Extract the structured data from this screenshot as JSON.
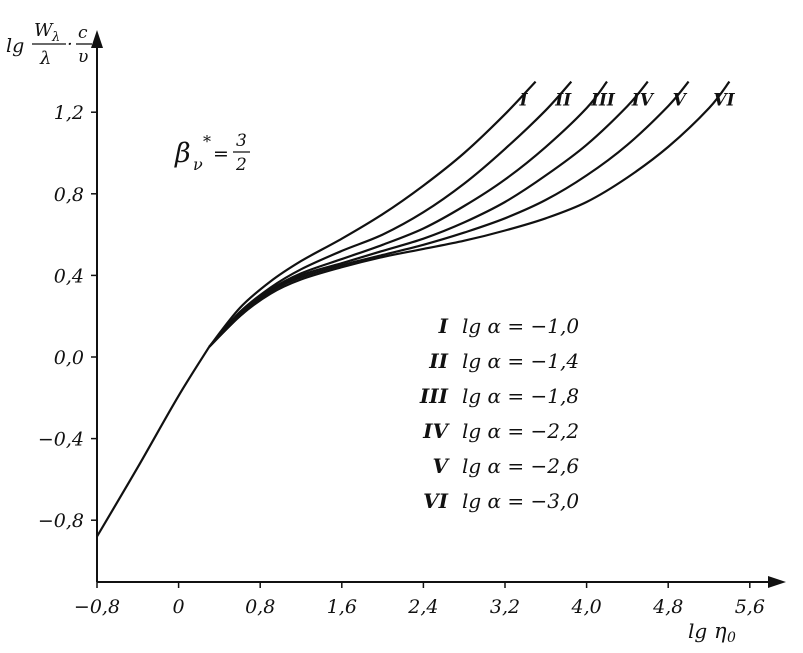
{
  "chart_data": {
    "type": "line",
    "ylabel": {
      "prefix": "lg",
      "num1": "W",
      "num1_sub": "λ",
      "den1": "λ",
      "dot": "·",
      "num2": "c",
      "den2": "υ"
    },
    "xlabel": {
      "prefix": "lg",
      "main": "η",
      "sub": "0"
    },
    "annotation": {
      "symbol": "β",
      "sub": "ν",
      "sup": "*",
      "eq": "=",
      "num": "3",
      "den": "2"
    },
    "xlim": [
      -0.8,
      5.8
    ],
    "ylim": [
      -1.1,
      1.5
    ],
    "x_ticks": [
      -0.8,
      0,
      0.8,
      1.6,
      2.4,
      3.2,
      4.0,
      4.8,
      5.6
    ],
    "x_tick_labels": [
      "−0,8",
      "0",
      "0,8",
      "1,6",
      "2,4",
      "3,2",
      "4,0",
      "4,8",
      "5,6"
    ],
    "y_ticks": [
      -0.8,
      -0.4,
      0.0,
      0.4,
      0.8,
      1.2
    ],
    "y_tick_labels": [
      "−0,8",
      "−0,4",
      "0,0",
      "0,4",
      "0,8",
      "1,2"
    ],
    "common_branch": {
      "x": [
        -0.8,
        -0.4,
        0.0,
        0.3
      ],
      "y": [
        -0.88,
        -0.54,
        -0.19,
        0.05
      ]
    },
    "series": [
      {
        "name": "I",
        "legend_text": "lg α = −1,0",
        "x": [
          0.3,
          0.6,
          0.9,
          1.2,
          1.6,
          2.0,
          2.4,
          2.8,
          3.2,
          3.5
        ],
        "y": [
          0.05,
          0.24,
          0.37,
          0.47,
          0.58,
          0.7,
          0.84,
          1.0,
          1.19,
          1.35
        ]
      },
      {
        "name": "II",
        "legend_text": "lg α = −1,4",
        "x": [
          0.3,
          0.6,
          0.9,
          1.2,
          1.6,
          2.0,
          2.4,
          2.8,
          3.2,
          3.6,
          3.85
        ],
        "y": [
          0.05,
          0.22,
          0.34,
          0.43,
          0.52,
          0.6,
          0.71,
          0.85,
          1.02,
          1.21,
          1.35
        ]
      },
      {
        "name": "III",
        "legend_text": "lg α = −1,8",
        "x": [
          0.3,
          0.6,
          0.9,
          1.2,
          1.6,
          2.0,
          2.4,
          2.8,
          3.2,
          3.6,
          4.0,
          4.2
        ],
        "y": [
          0.05,
          0.21,
          0.33,
          0.41,
          0.48,
          0.55,
          0.63,
          0.74,
          0.87,
          1.03,
          1.22,
          1.35
        ]
      },
      {
        "name": "IV",
        "legend_text": "lg α = −2,2",
        "x": [
          0.3,
          0.6,
          0.9,
          1.2,
          1.6,
          2.0,
          2.4,
          2.8,
          3.2,
          3.6,
          4.0,
          4.4,
          4.6
        ],
        "y": [
          0.05,
          0.2,
          0.32,
          0.4,
          0.46,
          0.52,
          0.58,
          0.66,
          0.76,
          0.89,
          1.04,
          1.23,
          1.35
        ]
      },
      {
        "name": "V",
        "legend_text": "lg α = −2,6",
        "x": [
          0.3,
          0.6,
          0.9,
          1.2,
          1.6,
          2.0,
          2.4,
          2.8,
          3.2,
          3.6,
          4.0,
          4.4,
          4.8,
          5.0
        ],
        "y": [
          0.05,
          0.2,
          0.32,
          0.39,
          0.45,
          0.5,
          0.55,
          0.61,
          0.68,
          0.77,
          0.89,
          1.04,
          1.23,
          1.35
        ]
      },
      {
        "name": "VI",
        "legend_text": "lg α = −3,0",
        "x": [
          0.3,
          0.6,
          0.9,
          1.2,
          1.6,
          2.0,
          2.4,
          2.8,
          3.2,
          3.6,
          4.0,
          4.4,
          4.8,
          5.2,
          5.4
        ],
        "y": [
          0.05,
          0.2,
          0.31,
          0.38,
          0.44,
          0.49,
          0.53,
          0.57,
          0.62,
          0.68,
          0.76,
          0.88,
          1.03,
          1.22,
          1.35
        ]
      }
    ]
  }
}
